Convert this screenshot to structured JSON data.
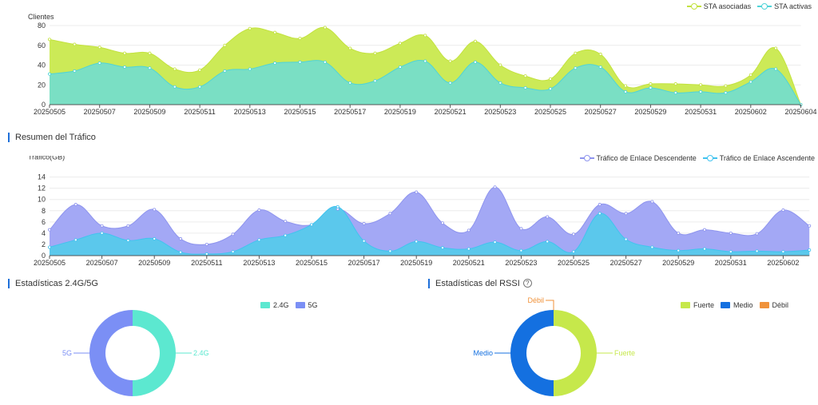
{
  "clients_chart": {
    "legend": {
      "associated": "STA asociadas",
      "active": "STA activas"
    },
    "colors": {
      "associated": "#ccea57",
      "active": "#7adfc4",
      "associated_line": "#c3e23f",
      "active_line": "#4fd4d8"
    },
    "chart_data": {
      "type": "area",
      "ylabel": "Clientes",
      "ylim": [
        0,
        80
      ],
      "yticks": [
        "0",
        "20",
        "40",
        "60",
        "80"
      ],
      "x": [
        "20250505",
        "20250506",
        "20250507",
        "20250508",
        "20250509",
        "20250510",
        "20250511",
        "20250512",
        "20250513",
        "20250514",
        "20250515",
        "20250516",
        "20250517",
        "20250518",
        "20250519",
        "20250520",
        "20250521",
        "20250522",
        "20250523",
        "20250524",
        "20250525",
        "20250526",
        "20250527",
        "20250528",
        "20250529",
        "20250530",
        "20250531",
        "20250601",
        "20250602",
        "20250603",
        "20250604"
      ],
      "xticks": [
        "20250505",
        "20250507",
        "20250509",
        "20250511",
        "20250513",
        "20250515",
        "20250517",
        "20250519",
        "20250521",
        "20250523",
        "20250525",
        "20250527",
        "20250529",
        "20250531",
        "20250602",
        "20250604"
      ],
      "series": [
        {
          "name": "STA asociadas",
          "values": [
            66,
            61,
            58,
            52,
            52,
            36,
            35,
            60,
            77,
            73,
            67,
            78,
            57,
            52,
            62,
            70,
            44,
            64,
            40,
            29,
            26,
            52,
            51,
            19,
            21,
            21,
            20,
            19,
            30,
            57,
            0
          ]
        },
        {
          "name": "STA activas",
          "values": [
            31,
            34,
            42,
            38,
            37,
            18,
            18,
            34,
            36,
            42,
            43,
            43,
            22,
            24,
            38,
            44,
            22,
            43,
            22,
            17,
            16,
            37,
            38,
            13,
            17,
            12,
            13,
            12,
            23,
            36,
            0
          ]
        }
      ]
    }
  },
  "traffic_section": {
    "title": "Resumen del Tráfico"
  },
  "traffic_chart": {
    "legend": {
      "down": "Tráfico de Enlace Descendente",
      "up": "Tráfico de Enlace Ascendente"
    },
    "colors": {
      "down": "#a3a8f5",
      "up": "#5bc8ec",
      "down_line": "#8e94ee",
      "up_line": "#41c3ef"
    },
    "chart_data": {
      "type": "area",
      "ylabel": "Tráfico(GB)",
      "ylim": [
        0,
        16
      ],
      "yticks": [
        "0",
        "2",
        "4",
        "6",
        "8",
        "10",
        "12",
        "14"
      ],
      "x": [
        "20250505",
        "20250506",
        "20250507",
        "20250508",
        "20250509",
        "20250510",
        "20250511",
        "20250512",
        "20250513",
        "20250514",
        "20250515",
        "20250516",
        "20250517",
        "20250518",
        "20250519",
        "20250520",
        "20250521",
        "20250522",
        "20250523",
        "20250524",
        "20250525",
        "20250526",
        "20250527",
        "20250528",
        "20250529",
        "20250530",
        "20250531",
        "20250601",
        "20250602",
        "20250603"
      ],
      "xticks": [
        "20250505",
        "20250507",
        "20250509",
        "20250511",
        "20250513",
        "20250515",
        "20250517",
        "20250519",
        "20250521",
        "20250523",
        "20250525",
        "20250527",
        "20250529",
        "20250531",
        "20250602"
      ],
      "series": [
        {
          "name": "Tráfico de Enlace Descendente",
          "values": [
            4.6,
            9.1,
            5.3,
            5.3,
            8.2,
            3.0,
            2.0,
            3.8,
            8.1,
            6.1,
            5.5,
            8.3,
            5.7,
            7.5,
            11.3,
            5.8,
            4.5,
            12.2,
            4.8,
            6.9,
            3.8,
            9.1,
            7.5,
            9.6,
            4.0,
            4.6,
            4.0,
            3.9,
            8.1,
            5.3
          ]
        },
        {
          "name": "Tráfico de Enlace Ascendente",
          "values": [
            1.5,
            2.8,
            4.0,
            2.7,
            3.0,
            0.6,
            0.3,
            0.7,
            2.8,
            3.6,
            5.5,
            8.7,
            2.6,
            0.8,
            2.5,
            1.4,
            1.2,
            2.4,
            0.9,
            2.5,
            0.7,
            7.5,
            2.9,
            1.5,
            0.9,
            1.2,
            0.7,
            0.8,
            0.7,
            1.0
          ]
        }
      ]
    }
  },
  "band_section": {
    "title": "Estadísticas 2.4G/5G"
  },
  "band_chart": {
    "colors": {
      "g24": "#5ce8d0",
      "g5": "#7b8ff5"
    },
    "legend": {
      "g24": "2.4G",
      "g5": "5G"
    },
    "chart_data": {
      "type": "pie",
      "categories": [
        "2.4G",
        "5G"
      ],
      "values": [
        50,
        50
      ]
    }
  },
  "rssi_section": {
    "title": "Estadísticas del RSSI",
    "help_icon": "question-circle-icon",
    "help_glyph": "?"
  },
  "rssi_chart": {
    "colors": {
      "strong": "#c6e84b",
      "medium": "#1470e0",
      "weak": "#f0923a"
    },
    "legend": {
      "strong": "Fuerte",
      "medium": "Medio",
      "weak": "Débil"
    },
    "chart_data": {
      "type": "pie",
      "categories": [
        "Fuerte",
        "Medio",
        "Débil"
      ],
      "values": [
        50,
        50,
        0
      ]
    }
  }
}
